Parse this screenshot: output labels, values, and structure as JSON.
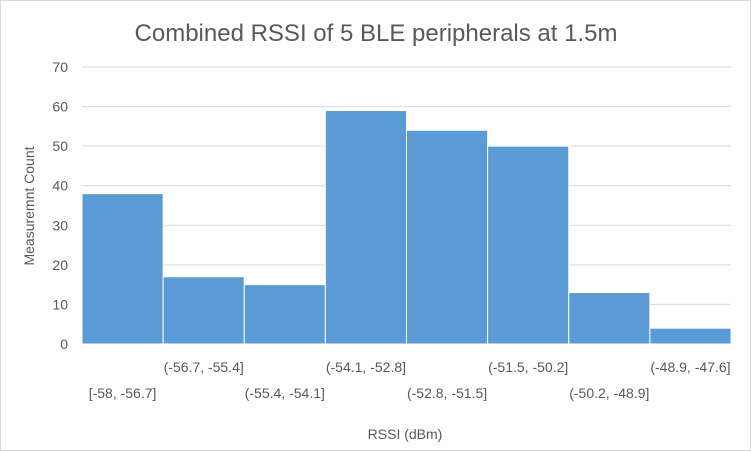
{
  "chart_data": {
    "type": "bar",
    "title": "Combined RSSI of 5 BLE peripherals at 1.5m",
    "xlabel": "RSSI (dBm)",
    "ylabel": "Measuremnt Count",
    "ylim": [
      0,
      70
    ],
    "yticks": [
      0,
      10,
      20,
      30,
      40,
      50,
      60,
      70
    ],
    "grid": true,
    "legend": "none",
    "bar_color": "#5b9bd5",
    "categories": [
      "[-58, -56.7]",
      "(-56.7, -55.4]",
      "(-55.4, -54.1]",
      "(-54.1, -52.8]",
      "(-52.8, -51.5]",
      "(-51.5, -50.2]",
      "(-50.2, -48.9]",
      "(-48.9, -47.6]"
    ],
    "values": [
      38,
      17,
      15,
      59,
      54,
      50,
      13,
      4
    ]
  }
}
